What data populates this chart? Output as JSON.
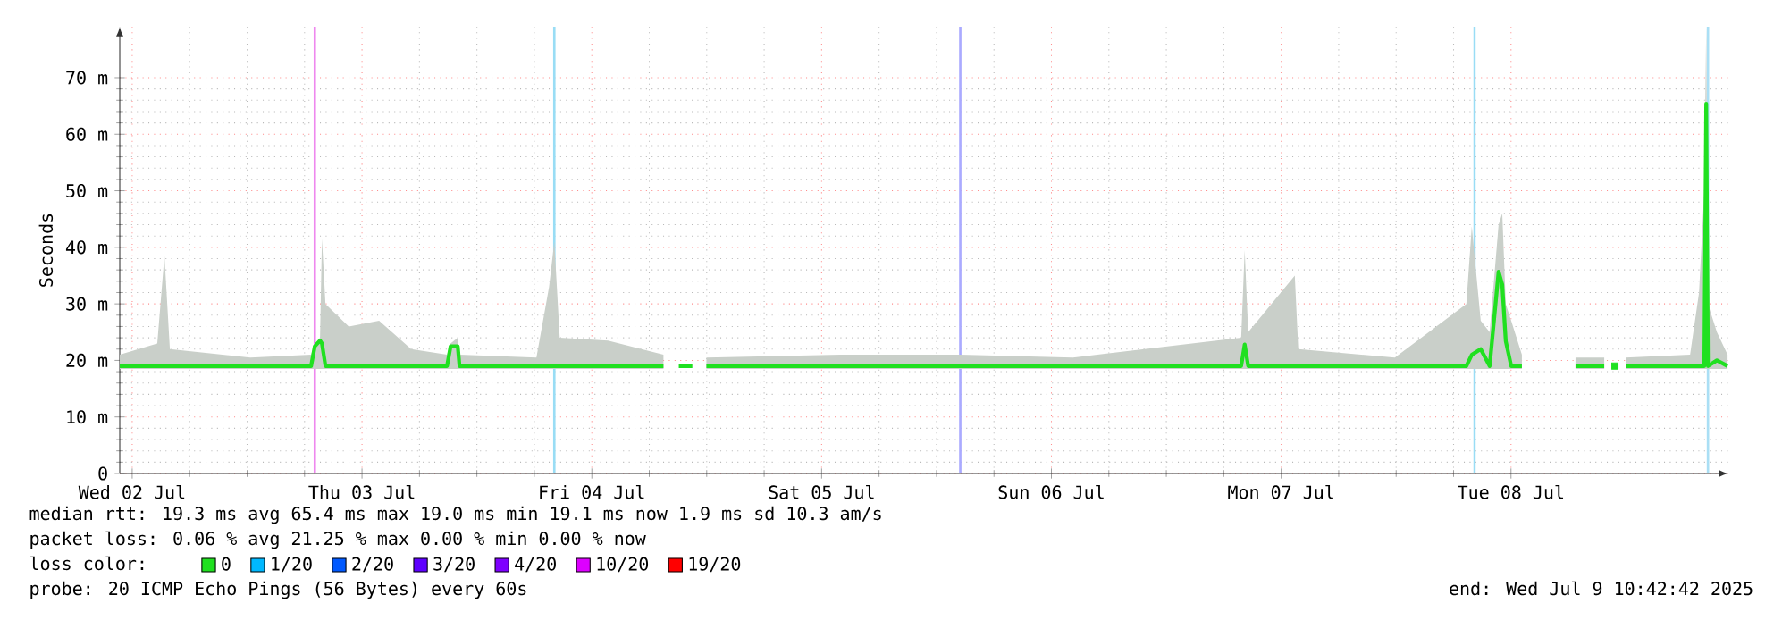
{
  "chart_data": {
    "type": "line",
    "ylabel": "Seconds",
    "xlim": [
      "2025-07-02T10:42",
      "2025-07-09T10:42"
    ],
    "xticks": [
      {
        "value": "2025-07-02T12:00",
        "label": "Wed 02 Jul"
      },
      {
        "value": "2025-07-03T12:00",
        "label": "Thu 03 Jul"
      },
      {
        "value": "2025-07-04T12:00",
        "label": "Fri 04 Jul"
      },
      {
        "value": "2025-07-05T12:00",
        "label": "Sat 05 Jul"
      },
      {
        "value": "2025-07-06T12:00",
        "label": "Sun 06 Jul"
      },
      {
        "value": "2025-07-07T12:00",
        "label": "Mon 07 Jul"
      },
      {
        "value": "2025-07-08T12:00",
        "label": "Tue 08 Jul"
      }
    ],
    "ylim": [
      0,
      79
    ],
    "yticks": [
      0,
      {
        "value": 10,
        "label": "10 m"
      },
      {
        "value": 20,
        "label": "20 m"
      },
      {
        "value": 30,
        "label": "30 m"
      },
      {
        "value": 40,
        "label": "40 m"
      },
      {
        "value": 50,
        "label": "50 m"
      },
      {
        "value": 60,
        "label": "60 m"
      },
      {
        "value": 70,
        "label": "70 m"
      }
    ],
    "grid": true,
    "legend": "bottom",
    "x": [
      "2025-07-02T10:42",
      "2025-07-02T14:37",
      "2025-07-02T15:22",
      "2025-07-02T15:56",
      "2025-07-03T00:20",
      "2025-07-03T06:41",
      "2025-07-03T07:04",
      "2025-07-03T07:37",
      "2025-07-03T07:49",
      "2025-07-03T08:11",
      "2025-07-03T10:37",
      "2025-07-03T13:47",
      "2025-07-03T17:08",
      "2025-07-03T20:53",
      "2025-07-03T21:15",
      "2025-07-03T22:00",
      "2025-07-03T22:11",
      "2025-07-04T06:13",
      "2025-07-04T07:32",
      "2025-07-04T08:05",
      "2025-07-04T08:39",
      "2025-07-04T13:41",
      "2025-07-04T19:29",
      "2025-07-04T20:25",
      "2025-07-04T21:05",
      "2025-07-04T22:30",
      "2025-07-04T23:02",
      "2025-07-04T23:58",
      "2025-07-05T13:58",
      "2025-07-06T02:29",
      "2025-07-06T14:15",
      "2025-07-07T07:49",
      "2025-07-07T08:11",
      "2025-07-07T08:33",
      "2025-07-07T13:25",
      "2025-07-07T13:47",
      "2025-07-07T23:52",
      "2025-07-08T07:20",
      "2025-07-08T07:54",
      "2025-07-08T08:50",
      "2025-07-08T09:46",
      "2025-07-08T10:42",
      "2025-07-08T11:05",
      "2025-07-08T11:27",
      "2025-07-08T12:01",
      "2025-07-08T13:08",
      "2025-07-08T15:56",
      "2025-07-08T18:44",
      "2025-07-08T21:44",
      "2025-07-08T22:17",
      "2025-07-08T22:51",
      "2025-07-08T23:25",
      "2025-07-08T23:58",
      "2025-07-09T06:42",
      "2025-07-09T07:38",
      "2025-07-09T08:11",
      "2025-07-09T08:23",
      "2025-07-09T08:34",
      "2025-07-09T09:30",
      "2025-07-09T10:37"
    ],
    "series": [
      {
        "name": "0",
        "color": "#20e020",
        "values": [
          19,
          19,
          19,
          19,
          19,
          19,
          22.5,
          23.5,
          23,
          19,
          19,
          19,
          19,
          19,
          22.5,
          22.5,
          19,
          19,
          19,
          19,
          19,
          19,
          19,
          null,
          19,
          19,
          null,
          19,
          19,
          19,
          19,
          19,
          22.8,
          19,
          19,
          19,
          19,
          19,
          21,
          22,
          19,
          35.7,
          33.4,
          23.4,
          19,
          19,
          null,
          19,
          19,
          null,
          19,
          null,
          19,
          19,
          19,
          19,
          65.4,
          19,
          20,
          19
        ],
        "lower": [
          18.5,
          18.5,
          18.5,
          18.5,
          18.5,
          18.5,
          18.5,
          18.5,
          18.5,
          18.5,
          18.5,
          18.5,
          18.5,
          18.5,
          18.5,
          18.5,
          18.5,
          18.5,
          18.5,
          18.5,
          18.5,
          18.5,
          18.5,
          null,
          null,
          null,
          null,
          18.5,
          18.5,
          18.5,
          18.5,
          18.5,
          18.5,
          18.5,
          18.5,
          18.5,
          18.5,
          18.5,
          18.5,
          18.5,
          18.5,
          18.5,
          18.5,
          18.5,
          18.5,
          18.5,
          null,
          18.5,
          18.5,
          null,
          null,
          null,
          18.5,
          18.5,
          18.5,
          18.5,
          18.5,
          18.5,
          18.5,
          18.5
        ],
        "upper": [
          21,
          23,
          38.5,
          22,
          20.5,
          21,
          23,
          24,
          41.5,
          30,
          26,
          27,
          22,
          21,
          23,
          24,
          21,
          20.5,
          33,
          41,
          24,
          23.5,
          21,
          null,
          null,
          null,
          null,
          20.5,
          21,
          21,
          20.5,
          24,
          39.5,
          25,
          35,
          22,
          20.5,
          30,
          43.7,
          27,
          25,
          44,
          46,
          30,
          27,
          21,
          null,
          20.5,
          20.5,
          null,
          null,
          null,
          20.5,
          21,
          32,
          50,
          79,
          30,
          25,
          21
        ]
      },
      {
        "name": "1/20",
        "color": "#00b8ff",
        "values": [
          null,
          null,
          null,
          null,
          null,
          null,
          null,
          null,
          null,
          null,
          null,
          null,
          null,
          null,
          null,
          null,
          null,
          null,
          null,
          null,
          null,
          null,
          null,
          null,
          null,
          null,
          null,
          null,
          null,
          null,
          null,
          null,
          null,
          null,
          null,
          null,
          null,
          null,
          null,
          null,
          null,
          null,
          null,
          null,
          null,
          null,
          null,
          null,
          null,
          null,
          null,
          null,
          null,
          null,
          null,
          null,
          null,
          null,
          null,
          null
        ]
      },
      {
        "name": "2/20",
        "color": "#0059ff",
        "values": [
          null,
          null,
          null,
          null,
          null,
          null,
          null,
          null,
          null,
          null,
          null,
          null,
          null,
          null,
          null,
          null,
          null,
          null,
          null,
          null,
          null,
          null,
          null,
          null,
          null,
          null,
          null,
          null,
          null,
          null,
          null,
          null,
          null,
          null,
          null,
          null,
          null,
          null,
          null,
          null,
          null,
          null,
          null,
          null,
          null,
          null,
          null,
          null,
          null,
          null,
          null,
          null,
          null,
          null,
          null,
          null,
          null,
          null,
          null,
          null
        ]
      },
      {
        "name": "3/20",
        "color": "#5e00ff",
        "values": [
          null,
          null,
          null,
          null,
          null,
          null,
          null,
          null,
          null,
          null,
          null,
          null,
          null,
          null,
          null,
          null,
          null,
          null,
          null,
          null,
          null,
          null,
          null,
          null,
          null,
          null,
          null,
          null,
          null,
          null,
          null,
          null,
          null,
          null,
          null,
          null,
          null,
          null,
          null,
          null,
          null,
          null,
          null,
          null,
          null,
          null,
          null,
          null,
          null,
          null,
          null,
          null,
          null,
          null,
          null,
          null,
          null,
          null,
          null,
          null
        ]
      },
      {
        "name": "4/20",
        "color": "#7e00ff",
        "values": [
          null,
          null,
          null,
          null,
          null,
          null,
          null,
          null,
          null,
          null,
          null,
          null,
          null,
          null,
          null,
          null,
          null,
          null,
          null,
          null,
          null,
          null,
          null,
          null,
          null,
          null,
          null,
          null,
          null,
          null,
          null,
          null,
          null,
          null,
          null,
          null,
          null,
          null,
          null,
          null,
          null,
          null,
          null,
          null,
          null,
          null,
          null,
          null,
          null,
          null,
          null,
          null,
          null,
          null,
          null,
          null,
          null,
          null,
          null,
          null
        ]
      },
      {
        "name": "10/20",
        "color": "#dd00ff",
        "values": [
          null,
          null,
          null,
          null,
          null,
          null,
          null,
          null,
          null,
          null,
          null,
          null,
          null,
          null,
          null,
          null,
          null,
          null,
          null,
          null,
          null,
          null,
          null,
          null,
          null,
          null,
          null,
          null,
          null,
          null,
          null,
          null,
          null,
          null,
          null,
          null,
          null,
          null,
          null,
          null,
          null,
          null,
          null,
          null,
          null,
          null,
          null,
          null,
          null,
          null,
          null,
          null,
          null,
          null,
          null,
          null,
          null,
          null,
          null,
          null
        ]
      },
      {
        "name": "19/20",
        "color": "#ff0000",
        "values": [
          null,
          null,
          null,
          null,
          null,
          null,
          null,
          null,
          null,
          null,
          null,
          null,
          null,
          null,
          null,
          null,
          null,
          null,
          null,
          null,
          null,
          null,
          null,
          null,
          null,
          null,
          null,
          null,
          null,
          null,
          null,
          null,
          null,
          null,
          null,
          null,
          null,
          null,
          null,
          null,
          null,
          null,
          null,
          null,
          null,
          null,
          null,
          null,
          null,
          null,
          null,
          null,
          null,
          null,
          null,
          null,
          null,
          null,
          null,
          null
        ]
      }
    ],
    "ref_lines": [
      {
        "axis": "x",
        "value": "2025-07-03T07:04",
        "color": "#ee88ee"
      },
      {
        "axis": "x",
        "value": "2025-07-04T08:05",
        "color": "#99ddf5"
      },
      {
        "axis": "x",
        "value": "2025-07-06T02:29",
        "color": "#aaaaff"
      },
      {
        "axis": "x",
        "value": "2025-07-08T08:12",
        "color": "#99ddf5"
      },
      {
        "axis": "x",
        "value": "2025-07-09T08:34",
        "color": "#aadff5"
      }
    ],
    "annotations": [
      "median rtt:  19.3 ms avg  65.4 ms max  19.0 ms min  19.1 ms now  1.9 ms sd  10.3   am/s",
      "packet loss: 0.06 % avg  21.25 % max  0.00 % min  0.00 % now",
      "loss color:",
      "probe:       20 ICMP Echo Pings (56 Bytes) every 60s",
      "end: Wed Jul  9 10:42:42 2025"
    ]
  }
}
